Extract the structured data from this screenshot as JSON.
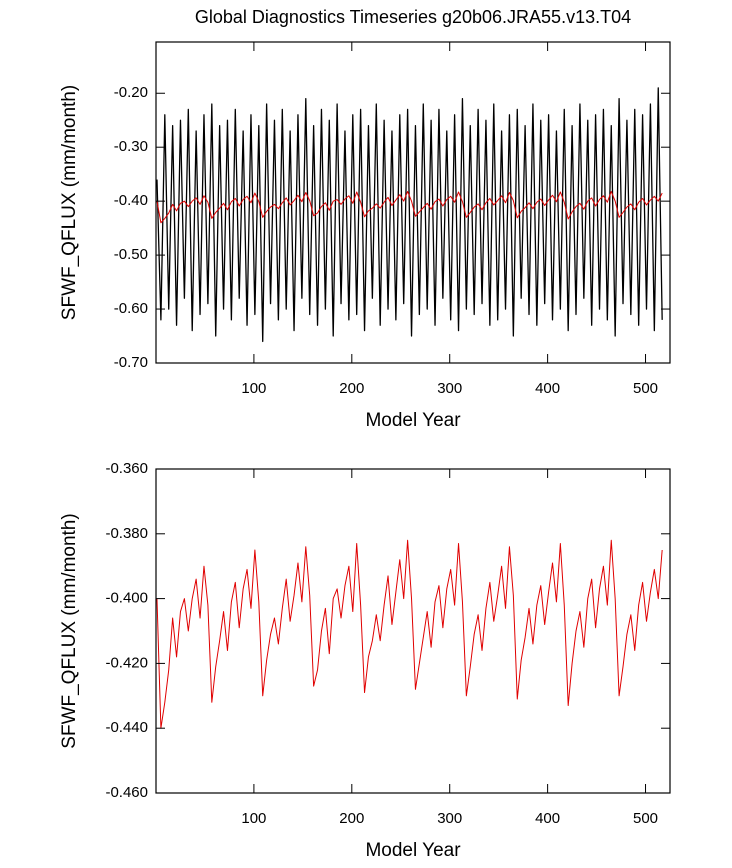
{
  "chart_data": [
    {
      "type": "line",
      "title": "Global Diagnostics Timeseries g20b06.JRA55.v13.T04",
      "ylabel": "SFWF_QFLUX (mm/month)",
      "xlabel": "Model Year",
      "x": [
        1,
        5,
        9,
        13,
        17,
        21,
        25,
        29,
        33,
        37,
        41,
        45,
        49,
        53,
        57,
        61,
        65,
        69,
        73,
        77,
        81,
        85,
        89,
        93,
        97,
        101,
        105,
        109,
        113,
        117,
        121,
        125,
        129,
        133,
        137,
        141,
        145,
        149,
        153,
        157,
        161,
        165,
        169,
        173,
        177,
        181,
        185,
        189,
        193,
        197,
        201,
        205,
        209,
        213,
        217,
        221,
        225,
        229,
        233,
        237,
        241,
        245,
        249,
        253,
        257,
        261,
        265,
        269,
        273,
        277,
        281,
        285,
        289,
        293,
        297,
        301,
        305,
        309,
        313,
        317,
        321,
        325,
        329,
        333,
        337,
        341,
        345,
        349,
        353,
        357,
        361,
        365,
        369,
        373,
        377,
        381,
        385,
        389,
        393,
        397,
        401,
        405,
        409,
        413,
        417,
        421,
        425,
        429,
        433,
        437,
        441,
        445,
        449,
        453,
        457,
        461,
        465,
        469,
        473,
        477,
        481,
        485,
        489,
        493,
        497,
        501,
        505,
        509,
        513,
        517
      ],
      "series": [
        {
          "color": "#000000",
          "values": [
            -0.36,
            -0.62,
            -0.24,
            -0.6,
            -0.26,
            -0.63,
            -0.25,
            -0.58,
            -0.23,
            -0.64,
            -0.27,
            -0.61,
            -0.24,
            -0.59,
            -0.22,
            -0.65,
            -0.26,
            -0.6,
            -0.25,
            -0.62,
            -0.23,
            -0.58,
            -0.27,
            -0.63,
            -0.24,
            -0.61,
            -0.26,
            -0.66,
            -0.22,
            -0.59,
            -0.25,
            -0.62,
            -0.23,
            -0.6,
            -0.27,
            -0.64,
            -0.24,
            -0.58,
            -0.21,
            -0.61,
            -0.26,
            -0.63,
            -0.23,
            -0.6,
            -0.25,
            -0.65,
            -0.22,
            -0.59,
            -0.27,
            -0.62,
            -0.24,
            -0.61,
            -0.23,
            -0.64,
            -0.26,
            -0.58,
            -0.22,
            -0.63,
            -0.25,
            -0.6,
            -0.27,
            -0.62,
            -0.24,
            -0.59,
            -0.23,
            -0.65,
            -0.26,
            -0.61,
            -0.22,
            -0.6,
            -0.25,
            -0.63,
            -0.23,
            -0.58,
            -0.27,
            -0.62,
            -0.24,
            -0.64,
            -0.21,
            -0.6,
            -0.26,
            -0.61,
            -0.23,
            -0.59,
            -0.25,
            -0.63,
            -0.22,
            -0.62,
            -0.27,
            -0.6,
            -0.24,
            -0.65,
            -0.23,
            -0.58,
            -0.26,
            -0.61,
            -0.22,
            -0.63,
            -0.25,
            -0.59,
            -0.24,
            -0.62,
            -0.27,
            -0.6,
            -0.23,
            -0.64,
            -0.26,
            -0.61,
            -0.22,
            -0.58,
            -0.25,
            -0.63,
            -0.24,
            -0.6,
            -0.23,
            -0.62,
            -0.26,
            -0.65,
            -0.21,
            -0.59,
            -0.25,
            -0.61,
            -0.23,
            -0.63,
            -0.24,
            -0.6,
            -0.22,
            -0.64,
            -0.19,
            -0.62
          ]
        },
        {
          "color": "#e00000",
          "values": [
            -0.4,
            -0.44,
            -0.432,
            -0.422,
            -0.406,
            -0.418,
            -0.404,
            -0.4,
            -0.41,
            -0.4,
            -0.394,
            -0.406,
            -0.39,
            -0.402,
            -0.432,
            -0.421,
            -0.413,
            -0.404,
            -0.416,
            -0.401,
            -0.395,
            -0.409,
            -0.397,
            -0.391,
            -0.403,
            -0.385,
            -0.401,
            -0.43,
            -0.419,
            -0.411,
            -0.406,
            -0.414,
            -0.403,
            -0.394,
            -0.407,
            -0.399,
            -0.389,
            -0.401,
            -0.384,
            -0.399,
            -0.427,
            -0.422,
            -0.41,
            -0.403,
            -0.417,
            -0.4,
            -0.397,
            -0.406,
            -0.396,
            -0.39,
            -0.404,
            -0.383,
            -0.402,
            -0.429,
            -0.418,
            -0.413,
            -0.405,
            -0.413,
            -0.402,
            -0.393,
            -0.408,
            -0.398,
            -0.388,
            -0.4,
            -0.382,
            -0.4,
            -0.428,
            -0.42,
            -0.412,
            -0.404,
            -0.415,
            -0.401,
            -0.396,
            -0.409,
            -0.397,
            -0.391,
            -0.402,
            -0.383,
            -0.401,
            -0.43,
            -0.421,
            -0.411,
            -0.405,
            -0.416,
            -0.403,
            -0.395,
            -0.407,
            -0.399,
            -0.39,
            -0.403,
            -0.384,
            -0.399,
            -0.431,
            -0.419,
            -0.412,
            -0.403,
            -0.414,
            -0.402,
            -0.396,
            -0.408,
            -0.398,
            -0.389,
            -0.401,
            -0.383,
            -0.402,
            -0.433,
            -0.42,
            -0.41,
            -0.404,
            -0.415,
            -0.4,
            -0.394,
            -0.409,
            -0.397,
            -0.39,
            -0.402,
            -0.382,
            -0.4,
            -0.43,
            -0.421,
            -0.411,
            -0.405,
            -0.416,
            -0.402,
            -0.395,
            -0.407,
            -0.398,
            -0.391,
            -0.4,
            -0.385
          ]
        }
      ],
      "xlim": [
        0,
        525
      ],
      "xticks": [
        100,
        200,
        300,
        400,
        500
      ],
      "ylim": [
        -0.7,
        -0.105
      ],
      "yticks": [
        {
          "value": -0.7,
          "label": "-0.70"
        },
        {
          "value": -0.6,
          "label": "-0.60"
        },
        {
          "value": -0.5,
          "label": "-0.50"
        },
        {
          "value": -0.4,
          "label": "-0.40"
        },
        {
          "value": -0.3,
          "label": "-0.30"
        },
        {
          "value": -0.2,
          "label": "-0.20"
        }
      ]
    },
    {
      "type": "line",
      "ylabel": "SFWF_QFLUX (mm/month)",
      "xlabel": "Model Year",
      "x": [
        1,
        5,
        9,
        13,
        17,
        21,
        25,
        29,
        33,
        37,
        41,
        45,
        49,
        53,
        57,
        61,
        65,
        69,
        73,
        77,
        81,
        85,
        89,
        93,
        97,
        101,
        105,
        109,
        113,
        117,
        121,
        125,
        129,
        133,
        137,
        141,
        145,
        149,
        153,
        157,
        161,
        165,
        169,
        173,
        177,
        181,
        185,
        189,
        193,
        197,
        201,
        205,
        209,
        213,
        217,
        221,
        225,
        229,
        233,
        237,
        241,
        245,
        249,
        253,
        257,
        261,
        265,
        269,
        273,
        277,
        281,
        285,
        289,
        293,
        297,
        301,
        305,
        309,
        313,
        317,
        321,
        325,
        329,
        333,
        337,
        341,
        345,
        349,
        353,
        357,
        361,
        365,
        369,
        373,
        377,
        381,
        385,
        389,
        393,
        397,
        401,
        405,
        409,
        413,
        417,
        421,
        425,
        429,
        433,
        437,
        441,
        445,
        449,
        453,
        457,
        461,
        465,
        469,
        473,
        477,
        481,
        485,
        489,
        493,
        497,
        501,
        505,
        509,
        513,
        517
      ],
      "series": [
        {
          "color": "#e00000",
          "values": [
            -0.4,
            -0.44,
            -0.432,
            -0.422,
            -0.406,
            -0.418,
            -0.404,
            -0.4,
            -0.41,
            -0.4,
            -0.394,
            -0.406,
            -0.39,
            -0.402,
            -0.432,
            -0.421,
            -0.413,
            -0.404,
            -0.416,
            -0.401,
            -0.395,
            -0.409,
            -0.397,
            -0.391,
            -0.403,
            -0.385,
            -0.401,
            -0.43,
            -0.419,
            -0.411,
            -0.406,
            -0.414,
            -0.403,
            -0.394,
            -0.407,
            -0.399,
            -0.389,
            -0.401,
            -0.384,
            -0.399,
            -0.427,
            -0.422,
            -0.41,
            -0.403,
            -0.417,
            -0.4,
            -0.397,
            -0.406,
            -0.396,
            -0.39,
            -0.404,
            -0.383,
            -0.402,
            -0.429,
            -0.418,
            -0.413,
            -0.405,
            -0.413,
            -0.402,
            -0.393,
            -0.408,
            -0.398,
            -0.388,
            -0.4,
            -0.382,
            -0.4,
            -0.428,
            -0.42,
            -0.412,
            -0.404,
            -0.415,
            -0.401,
            -0.396,
            -0.409,
            -0.397,
            -0.391,
            -0.402,
            -0.383,
            -0.401,
            -0.43,
            -0.421,
            -0.411,
            -0.405,
            -0.416,
            -0.403,
            -0.395,
            -0.407,
            -0.399,
            -0.39,
            -0.403,
            -0.384,
            -0.399,
            -0.431,
            -0.419,
            -0.412,
            -0.403,
            -0.414,
            -0.402,
            -0.396,
            -0.408,
            -0.398,
            -0.389,
            -0.401,
            -0.383,
            -0.402,
            -0.433,
            -0.42,
            -0.41,
            -0.404,
            -0.415,
            -0.4,
            -0.394,
            -0.409,
            -0.397,
            -0.39,
            -0.402,
            -0.382,
            -0.4,
            -0.43,
            -0.421,
            -0.411,
            -0.405,
            -0.416,
            -0.402,
            -0.395,
            -0.407,
            -0.398,
            -0.391,
            -0.4,
            -0.385
          ]
        }
      ],
      "xlim": [
        0,
        525
      ],
      "xticks": [
        100,
        200,
        300,
        400,
        500
      ],
      "ylim": [
        -0.46,
        -0.36
      ],
      "yticks": [
        {
          "value": -0.46,
          "label": "-0.460"
        },
        {
          "value": -0.44,
          "label": "-0.440"
        },
        {
          "value": -0.42,
          "label": "-0.420"
        },
        {
          "value": -0.4,
          "label": "-0.400"
        },
        {
          "value": -0.38,
          "label": "-0.380"
        },
        {
          "value": -0.36,
          "label": "-0.360"
        }
      ]
    }
  ]
}
